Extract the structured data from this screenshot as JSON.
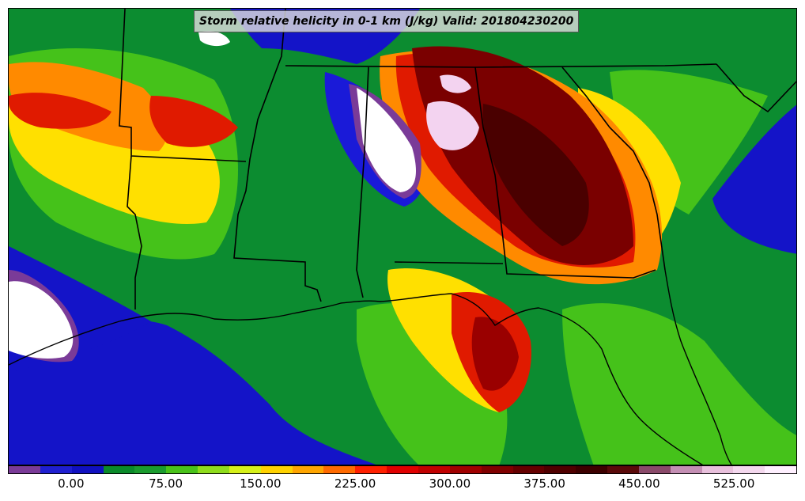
{
  "title": "Storm relative helicity in 0-1 km (J/kg) Valid: 201804230200",
  "colorbar": {
    "tick_labels": [
      "0.00",
      "75.00",
      "150.00",
      "225.00",
      "300.00",
      "375.00",
      "450.00",
      "525.00"
    ],
    "bin_colors": [
      "#7a3b98",
      "#1f1fd0",
      "#1010c0",
      "#0a8a2a",
      "#1a9b2e",
      "#49c21a",
      "#8fdc1c",
      "#d6f01a",
      "#ffd200",
      "#ffa500",
      "#ff6a00",
      "#ff2000",
      "#e00000",
      "#c00000",
      "#a00000",
      "#800000",
      "#650000",
      "#500000",
      "#3d0000",
      "#5a0a0a",
      "#8a4a6a",
      "#c48fb4",
      "#e8c0dc",
      "#f4d8ee",
      "#fff0ff"
    ]
  },
  "map": {
    "field": "Storm relative helicity 0-1 km",
    "units": "J/kg",
    "valid_time": "201804230200",
    "colors": {
      "ocean_low": "#1414c8",
      "mid_green": "#0c8c30",
      "light_green": "#45c21a",
      "lime": "#9be01c",
      "yellow": "#ffe000",
      "orange": "#ff8a00",
      "red": "#e01a00",
      "dark_red": "#7a0000",
      "pink": "#f3d3f0",
      "purple": "#7a3b98",
      "missing": "#ffffff",
      "boundary": "#000000"
    }
  }
}
